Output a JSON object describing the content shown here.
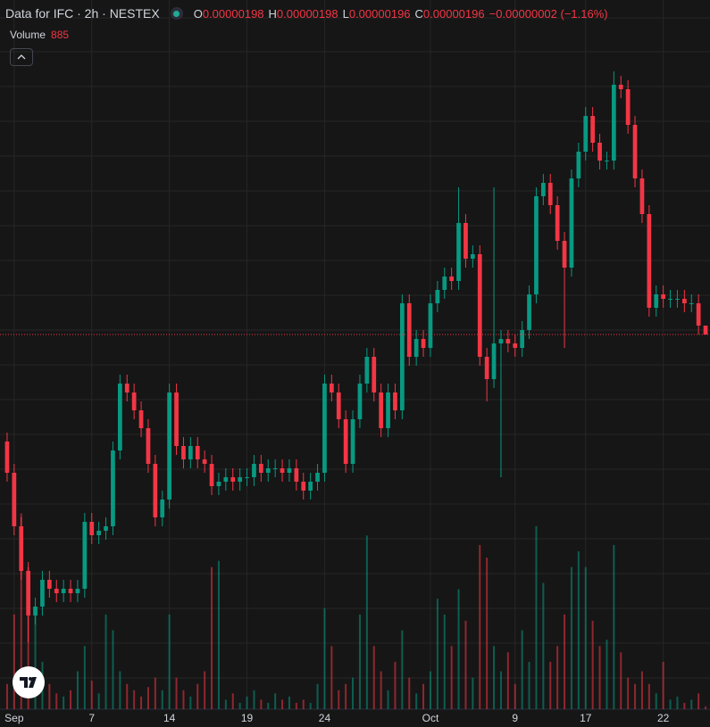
{
  "chart_data": {
    "type": "candlestick",
    "title": "Data for IFC · 2h · NESTEX",
    "legend": {
      "open_label": "O",
      "high_label": "H",
      "low_label": "L",
      "close_label": "C",
      "change": "−0.00000002 (−1.16%)"
    },
    "volume_title": "Volume",
    "up_color": "#089981",
    "down_color": "#f23645",
    "grid": true,
    "xlim": [
      -0.5,
      99.5
    ],
    "ylim": [
      1.12e-06,
      2.71e-06
    ],
    "vlim": [
      0,
      65000
    ],
    "xticks": [
      {
        "value": 1,
        "label": "Sep"
      },
      {
        "value": 12,
        "label": "7"
      },
      {
        "value": 23,
        "label": "14"
      },
      {
        "value": 34,
        "label": "19"
      },
      {
        "value": 45,
        "label": "24"
      },
      {
        "value": 60,
        "label": "Oct"
      },
      {
        "value": 72,
        "label": "9"
      },
      {
        "value": 82,
        "label": "17"
      },
      {
        "value": 93,
        "label": "22"
      }
    ],
    "open": [
      1.72e-06,
      1.65e-06,
      1.53e-06,
      1.43e-06,
      1.33e-06,
      1.35e-06,
      1.41e-06,
      1.39e-06,
      1.38e-06,
      1.39e-06,
      1.38e-06,
      1.39e-06,
      1.54e-06,
      1.51e-06,
      1.52e-06,
      1.53e-06,
      1.7e-06,
      1.85e-06,
      1.83e-06,
      1.79e-06,
      1.75e-06,
      1.67e-06,
      1.55e-06,
      1.59e-06,
      1.83e-06,
      1.71e-06,
      1.68e-06,
      1.71e-06,
      1.68e-06,
      1.67e-06,
      1.62e-06,
      1.63e-06,
      1.64e-06,
      1.63e-06,
      1.64e-06,
      1.64e-06,
      1.67e-06,
      1.65e-06,
      1.66e-06,
      1.66e-06,
      1.65e-06,
      1.66e-06,
      1.63e-06,
      1.61e-06,
      1.63e-06,
      1.65e-06,
      1.85e-06,
      1.83e-06,
      1.77e-06,
      1.67e-06,
      1.77e-06,
      1.85e-06,
      1.91e-06,
      1.83e-06,
      1.75e-06,
      1.83e-06,
      1.79e-06,
      2.03e-06,
      1.91e-06,
      1.95e-06,
      1.93e-06,
      2.03e-06,
      2.06e-06,
      2.09e-06,
      2.08e-06,
      2.21e-06,
      2.13e-06,
      2.14e-06,
      1.91e-06,
      1.86e-06,
      1.94e-06,
      1.95e-06,
      1.94e-06,
      1.93e-06,
      1.97e-06,
      2.05e-06,
      2.27e-06,
      2.3e-06,
      2.25e-06,
      2.17e-06,
      2.11e-06,
      2.31e-06,
      2.37e-06,
      2.45e-06,
      2.39e-06,
      2.35e-06,
      2.35e-06,
      2.52e-06,
      2.51e-06,
      2.43e-06,
      2.31e-06,
      2.23e-06,
      2.02e-06,
      2.05e-06,
      2.04e-06,
      2.04e-06,
      2.04e-06,
      2.03e-06,
      2.03e-06,
      1.98e-06
    ],
    "high": [
      1.74e-06,
      1.67e-06,
      1.55e-06,
      1.45e-06,
      1.37e-06,
      1.43e-06,
      1.43e-06,
      1.41e-06,
      1.41e-06,
      1.41e-06,
      1.41e-06,
      1.56e-06,
      1.56e-06,
      1.54e-06,
      1.55e-06,
      1.72e-06,
      1.87e-06,
      1.87e-06,
      1.85e-06,
      1.81e-06,
      1.77e-06,
      1.69e-06,
      1.61e-06,
      1.85e-06,
      1.85e-06,
      1.73e-06,
      1.73e-06,
      1.73e-06,
      1.7e-06,
      1.69e-06,
      1.65e-06,
      1.66e-06,
      1.66e-06,
      1.66e-06,
      1.66e-06,
      1.69e-06,
      1.69e-06,
      1.68e-06,
      1.68e-06,
      1.68e-06,
      1.68e-06,
      1.68e-06,
      1.65e-06,
      1.65e-06,
      1.67e-06,
      1.87e-06,
      1.87e-06,
      1.85e-06,
      1.79e-06,
      1.79e-06,
      1.87e-06,
      1.93e-06,
      1.93e-06,
      1.85e-06,
      1.85e-06,
      1.85e-06,
      2.05e-06,
      2.05e-06,
      1.97e-06,
      1.97e-06,
      2.05e-06,
      2.08e-06,
      2.11e-06,
      2.11e-06,
      2.29e-06,
      2.23e-06,
      2.16e-06,
      2.16e-06,
      1.93e-06,
      2.29e-06,
      1.97e-06,
      1.97e-06,
      1.96e-06,
      1.99e-06,
      2.07e-06,
      2.29e-06,
      2.32e-06,
      2.32e-06,
      2.27e-06,
      2.19e-06,
      2.33e-06,
      2.39e-06,
      2.47e-06,
      2.47e-06,
      2.41e-06,
      2.37e-06,
      2.55e-06,
      2.54e-06,
      2.53e-06,
      2.45e-06,
      2.33e-06,
      2.25e-06,
      2.07e-06,
      2.07e-06,
      2.06e-06,
      2.06e-06,
      2.06e-06,
      2.05e-06,
      2.05e-06,
      1.98e-06
    ],
    "low": [
      1.63e-06,
      1.51e-06,
      1.41e-06,
      1.27e-06,
      1.31e-06,
      1.33e-06,
      1.37e-06,
      1.36e-06,
      1.36e-06,
      1.36e-06,
      1.36e-06,
      1.37e-06,
      1.49e-06,
      1.49e-06,
      1.5e-06,
      1.51e-06,
      1.68e-06,
      1.81e-06,
      1.77e-06,
      1.73e-06,
      1.65e-06,
      1.53e-06,
      1.53e-06,
      1.57e-06,
      1.69e-06,
      1.66e-06,
      1.66e-06,
      1.66e-06,
      1.65e-06,
      1.6e-06,
      1.6e-06,
      1.61e-06,
      1.61e-06,
      1.61e-06,
      1.62e-06,
      1.62e-06,
      1.63e-06,
      1.63e-06,
      1.64e-06,
      1.63e-06,
      1.63e-06,
      1.61e-06,
      1.59e-06,
      1.59e-06,
      1.61e-06,
      1.63e-06,
      1.81e-06,
      1.75e-06,
      1.65e-06,
      1.65e-06,
      1.75e-06,
      1.83e-06,
      1.81e-06,
      1.73e-06,
      1.73e-06,
      1.77e-06,
      1.77e-06,
      1.89e-06,
      1.89e-06,
      1.91e-06,
      1.91e-06,
      2.01e-06,
      2.04e-06,
      2.06e-06,
      2.06e-06,
      2.11e-06,
      2.11e-06,
      1.89e-06,
      1.81e-06,
      1.84e-06,
      1.64e-06,
      1.92e-06,
      1.91e-06,
      1.91e-06,
      1.95e-06,
      2.03e-06,
      2.25e-06,
      2.23e-06,
      2.15e-06,
      1.93e-06,
      2.09e-06,
      2.29e-06,
      2.35e-06,
      2.37e-06,
      2.33e-06,
      2.33e-06,
      2.33e-06,
      2.49e-06,
      2.41e-06,
      2.29e-06,
      2.21e-06,
      2e-06,
      2e-06,
      2.02e-06,
      2.02e-06,
      2.02e-06,
      2.01e-06,
      2.01e-06,
      1.96e-06,
      1.96e-06
    ],
    "close": [
      1.65e-06,
      1.53e-06,
      1.43e-06,
      1.33e-06,
      1.35e-06,
      1.41e-06,
      1.39e-06,
      1.38e-06,
      1.39e-06,
      1.38e-06,
      1.39e-06,
      1.54e-06,
      1.51e-06,
      1.52e-06,
      1.53e-06,
      1.7e-06,
      1.85e-06,
      1.83e-06,
      1.79e-06,
      1.75e-06,
      1.67e-06,
      1.55e-06,
      1.59e-06,
      1.83e-06,
      1.71e-06,
      1.68e-06,
      1.71e-06,
      1.68e-06,
      1.67e-06,
      1.62e-06,
      1.63e-06,
      1.64e-06,
      1.63e-06,
      1.64e-06,
      1.64e-06,
      1.67e-06,
      1.65e-06,
      1.66e-06,
      1.66e-06,
      1.65e-06,
      1.66e-06,
      1.63e-06,
      1.61e-06,
      1.63e-06,
      1.65e-06,
      1.85e-06,
      1.83e-06,
      1.77e-06,
      1.67e-06,
      1.77e-06,
      1.85e-06,
      1.91e-06,
      1.83e-06,
      1.75e-06,
      1.83e-06,
      1.79e-06,
      2.03e-06,
      1.91e-06,
      1.95e-06,
      1.93e-06,
      2.03e-06,
      2.06e-06,
      2.09e-06,
      2.08e-06,
      2.21e-06,
      2.13e-06,
      2.14e-06,
      1.91e-06,
      1.86e-06,
      1.94e-06,
      1.95e-06,
      1.94e-06,
      1.93e-06,
      1.97e-06,
      2.05e-06,
      2.27e-06,
      2.3e-06,
      2.25e-06,
      2.17e-06,
      2.11e-06,
      2.31e-06,
      2.37e-06,
      2.45e-06,
      2.39e-06,
      2.35e-06,
      2.35e-06,
      2.52e-06,
      2.51e-06,
      2.43e-06,
      2.31e-06,
      2.23e-06,
      2.02e-06,
      2.05e-06,
      2.04e-06,
      2.04e-06,
      2.04e-06,
      2.03e-06,
      2.03e-06,
      1.98e-06,
      1.96e-06
    ],
    "volume": [
      8000,
      30000,
      62000,
      45000,
      30000,
      15000,
      8000,
      5000,
      4000,
      6000,
      12000,
      20000,
      9000,
      5000,
      30000,
      25000,
      12000,
      8000,
      6000,
      4000,
      7000,
      10000,
      6000,
      30000,
      10000,
      6000,
      4000,
      8000,
      12000,
      45000,
      47000,
      3000,
      5000,
      2000,
      4000,
      6000,
      3000,
      2000,
      5000,
      3000,
      4000,
      2000,
      3000,
      2000,
      8000,
      32000,
      20000,
      6000,
      8000,
      10000,
      30000,
      55000,
      20000,
      12000,
      6000,
      15000,
      25000,
      10000,
      5000,
      8000,
      12000,
      35000,
      30000,
      20000,
      38000,
      28000,
      10000,
      52000,
      48000,
      20000,
      12000,
      18000,
      8000,
      25000,
      15000,
      58000,
      40000,
      15000,
      20000,
      30000,
      45000,
      50000,
      45000,
      28000,
      20000,
      22000,
      52000,
      18000,
      10000,
      8000,
      12000,
      8000,
      5000,
      15000,
      3000,
      4000,
      2000,
      3000,
      5000,
      885
    ]
  }
}
